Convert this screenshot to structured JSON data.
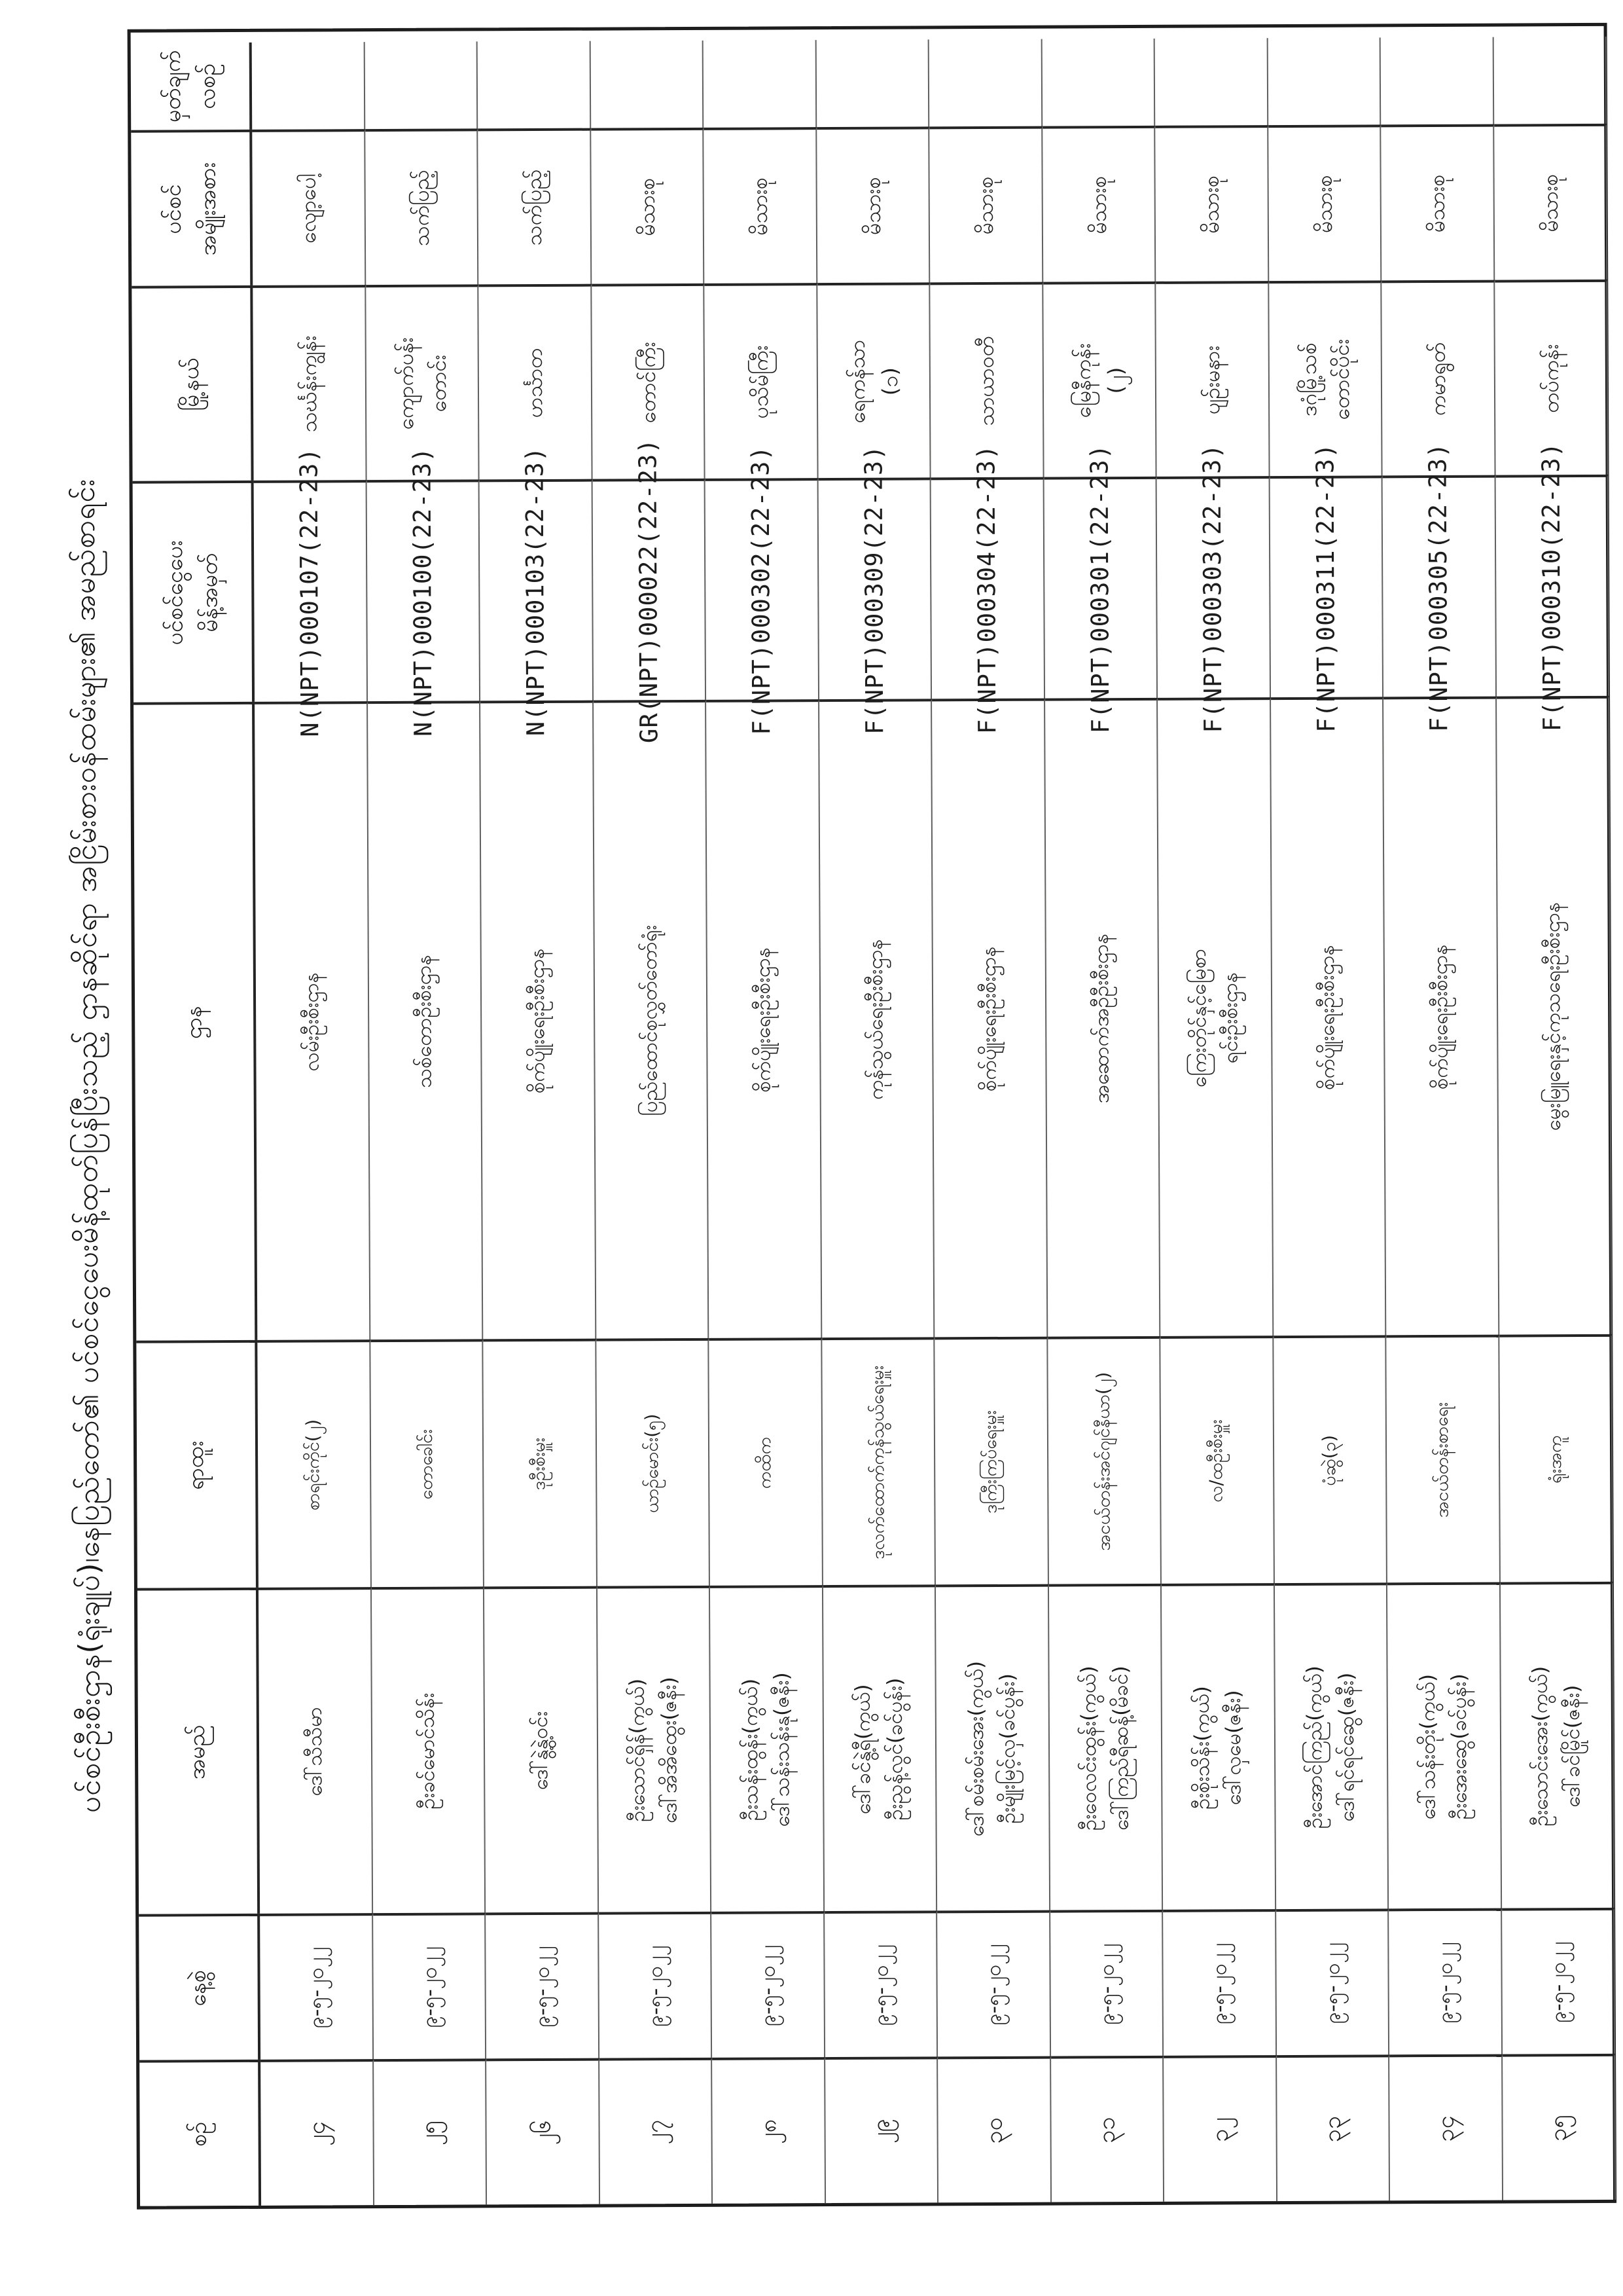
{
  "page": {
    "title": "ပင်စင်ဦးစီးဌာန(ရုံးချုပ်)၊နေပြည်တော်၏ ပင်စင်ငွေပေးမိန့်ထုတ်ပြန်ပြီးသည့် ဌာနဆိုင်ရာ အငြိမ်းစားဝန်ထမ်းများ၏ အမည်စာရင်း"
  },
  "table": {
    "columns": [
      {
        "key": "no",
        "label_lines": [
          "စဉ်"
        ]
      },
      {
        "key": "date",
        "label_lines": [
          "နေ့စွဲ"
        ]
      },
      {
        "key": "name",
        "label_lines": [
          "အမည်"
        ]
      },
      {
        "key": "position",
        "label_lines": [
          "ရာထူး"
        ]
      },
      {
        "key": "department",
        "label_lines": [
          "ဌာန"
        ]
      },
      {
        "key": "payment_order_no",
        "label_lines": [
          "ပင်စင်ငွေပေး",
          "မိန့်အမှတ်"
        ]
      },
      {
        "key": "township",
        "label_lines": [
          "မြို့နယ်"
        ]
      },
      {
        "key": "pension_type",
        "label_lines": [
          "ပင်စင်",
          "အမျိုးအစား"
        ]
      },
      {
        "key": "remark",
        "label_lines": [
          "မှတ်ချက်",
          "လစဉ်"
        ]
      }
    ],
    "rows": [
      {
        "no": "၂၄",
        "date": "၉-၅-၂၀၂၂",
        "name_lines": [
          "ဒေါ်သီသီမာ"
        ],
        "position": "စာရင်းကိုင်(၂)",
        "department_lines": [
          "လမ်းဦးစီးဌာန"
        ],
        "payment_order_no": "N(NPT)000107(22-23)",
        "township_lines": [
          "သင်္ဃန်းကျွန်း"
        ],
        "pension_type": "လျော့ပေါ့",
        "remark_lines": []
      },
      {
        "no": "၂၅",
        "date": "၉-၅-၂၀၂၂",
        "name_lines": [
          "ဦးခင်မောင်သိန်း"
        ],
        "position": "တောခေါင်း",
        "department_lines": [
          "သစ်တောဦးစီးဌာန"
        ],
        "payment_order_no": "N(NPT)000100(22-23)",
        "township_lines": [
          "ကျောက်ပန်း",
          "တောင်း"
        ],
        "pension_type": "သက်ပြည့်",
        "remark_lines": []
      },
      {
        "no": "၂၆",
        "date": "၉-၅-၂၀၂၂",
        "name_lines": [
          "ဒေါ်နွဲ့နွဲ့ဝင်း"
        ],
        "position": "ဒုဦးစီးမှူး",
        "department_lines": [
          "စိုက်ပျိုးရေးဦးစီးဌာန"
        ],
        "payment_order_no": "N(NPT)000103(22-23)",
        "township_lines": [
          "ဟင်္သာတ"
        ],
        "pension_type": "သက်ပြည့်",
        "remark_lines": []
      },
      {
        "no": "၂၇",
        "date": "၉-၅-၂၀၂၂",
        "name_lines": [
          "ဦးသောင်ရှိန်(ကွယ်)",
          "ဒေါ်အိအိထွေး(ဇနီး)"
        ],
        "position": "ယာဉ်မောင်း(၅)",
        "department_lines": [
          "ပြည်ထောင်စုလွှတ်တော်ရုံး"
        ],
        "payment_order_no": "GR(NPT)000022(22-23)",
        "township_lines": [
          "တောင်ကြီး"
        ],
        "pension_type": "မိသားစု",
        "remark_lines": []
      },
      {
        "no": "၂၈",
        "date": "၉-၅-၂၀၂၂",
        "name_lines": [
          "ဦးသန်းထွန်း(ကွယ်)",
          "ဒေါ်သန်းသန်းနု(ဇနီး)"
        ],
        "position": "ကထိက",
        "department_lines": [
          "စိုက်ပျိုးရေးဦးစီးဌာန"
        ],
        "payment_order_no": "F(NPT)000302(22-23)",
        "township_lines": [
          "ပုသိမ်ကြီး"
        ],
        "pension_type": "မိသားစု",
        "remark_lines": []
      },
      {
        "no": "၂၉",
        "date": "၉-၅-၂၀၂၂",
        "name_lines": [
          "ဒေါ်ခင်နွဲ့ရီ(ကွယ်)",
          "ဦးညွန့်လွင်(ခင်ပွန်း)"
        ],
        "position": "ဒုလက်ထောက်ကုန်သွယ်ရေးမှူး",
        "department_lines": [
          "ကုန်သွယ်ရေးဦးစီးဌာန"
        ],
        "payment_order_no": "F(NPT)000309(22-23)",
        "township_lines": [
          "ရေကန်သာ",
          "(၁)"
        ],
        "pension_type": "မိသားစု",
        "remark_lines": []
      },
      {
        "no": "၃၀",
        "date": "၉-၅-၂၀၂၂",
        "name_lines": [
          "ဒေါ်စမ်းစမ်းအေး(ကွယ်)",
          "ဦးမျိုးမြင့်လှ(ခင်ပွန်း)"
        ],
        "position": "ဒုကြီးကြပ်ရေးမှူး",
        "department_lines": [
          "စိုက်ပျိုးရေးဦးစီးဌာန"
        ],
        "payment_order_no": "F(NPT)000304(22-23)",
        "township_lines": [
          "သာယာဝတီ"
        ],
        "pension_type": "မိသားစု",
        "remark_lines": []
      },
      {
        "no": "၃၁",
        "date": "၉-၅-၂၀၂၂",
        "name_lines": [
          "ဦးဝေလင်းထွန်း(ကွယ်)",
          "ဒေါ်ကြည်ရီဆန့်(မိခင်)"
        ],
        "position": "အငယ်တန်းအင်ဂျင်နီယာ(၂)",
        "department_lines": [
          "အဆောက်အဦဦးစီးဌာန"
        ],
        "payment_order_no": "F(NPT)000301(22-23)",
        "township_lines": [
          "မြေနီကုန်း",
          "(၂)"
        ],
        "pension_type": "မိသားစု",
        "remark_lines": []
      },
      {
        "no": "၃၂",
        "date": "၉-၅-၂၀၂၂",
        "name_lines": [
          "ဦးစိုးသိန်း(ကွယ်)",
          "ဒေါ်လှမေ(ဇနီး)"
        ],
        "position": "လ/ထဦးစီးမှူး",
        "department_lines": [
          "ကြေးတိုင်နှင့်မြေစာ",
          "ရင်းဦးစီးဌာန"
        ],
        "payment_order_no": "F(NPT)000303(22-23)",
        "township_lines": [
          "ပျဉ်းမနား"
        ],
        "pension_type": "မိသားစု",
        "remark_lines": []
      },
      {
        "no": "၃၃",
        "date": "၉-၅-၂၀၂၂",
        "name_lines": [
          "ဦးအောင်ကြည်(ကွယ်)",
          "ဒေါ်ရင်ရင်ဆွေ(ဇနီး)"
        ],
        "position": "ပုံဆွဲ(၃)",
        "department_lines": [
          "စိုက်ပျိုးရေးဦးစီးဌာန"
        ],
        "payment_order_no": "F(NPT)000311(22-23)",
        "township_lines": [
          "ဒဂုံမြို့သစ်",
          "တောင်ပိုင်း"
        ],
        "pension_type": "မိသားစု",
        "remark_lines": []
      },
      {
        "no": "၃၄",
        "date": "၉-၅-၂၀၂၂",
        "name_lines": [
          "ဒေါ်သန်းတိုး(ကွယ်)",
          "ဦးအေးဆွေ(ခင်ပွန်း)"
        ],
        "position": "အငယ်တန်းစာရေး",
        "department_lines": [
          "စိုက်ပျိုးရေးဦးစီးဌာန"
        ],
        "payment_order_no": "F(NPT)000305(22-23)",
        "township_lines": [
          "ကမာရွတ်"
        ],
        "pension_type": "မိသားစု",
        "remark_lines": []
      },
      {
        "no": "၃၅",
        "date": "၉-၅-၂၀၂၂",
        "name_lines": [
          "ဦးသောင်းအေး(ကွယ်)",
          "ဒေါ်ခင်မြိုင်(ဇနီး)"
        ],
        "position": "ရုံးအကူ",
        "department_lines": [
          "မွေးမြူရေးနှင့်ကုသရေးဦးစီးဌာန"
        ],
        "payment_order_no": "F(NPT)000310(22-23)",
        "township_lines": [
          "တပ်ကုန်း"
        ],
        "pension_type": "မိသားစု",
        "remark_lines": []
      }
    ]
  }
}
